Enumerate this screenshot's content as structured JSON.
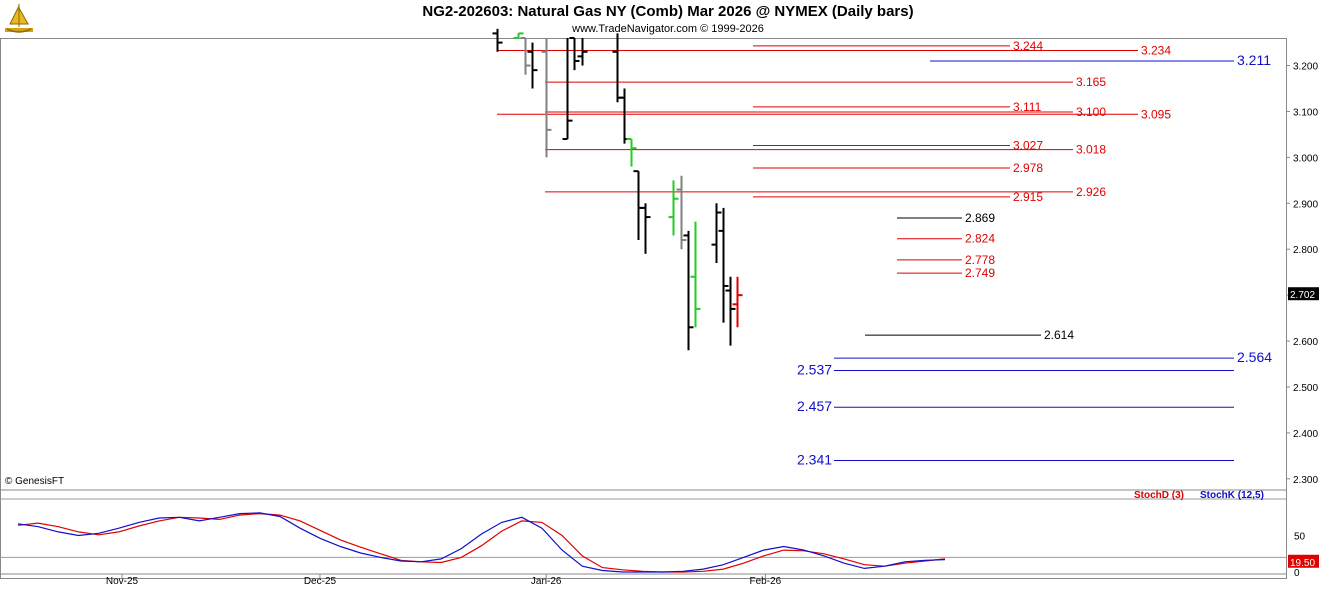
{
  "header": {
    "title": "NG2-202603:  Natural Gas NY (Comb) Mar 2026 @ NYMEX  (Daily bars)",
    "subtitle": "www.TradeNavigator.com © 1999-2026",
    "copyright": "© GenesisFT",
    "logo_icon": "sailboat-logo-icon"
  },
  "chart_data": [
    {
      "type": "ohlc",
      "ylim": [
        2.28,
        3.26
      ],
      "yticks": [
        "3.200",
        "3.100",
        "3.000",
        "2.900",
        "2.800",
        "2.700",
        "2.600",
        "2.500",
        "2.400",
        "2.300"
      ],
      "last_price": "2.702",
      "xticks": [
        "Nov-25",
        "Dec-25",
        "Jan-26",
        "Feb-26"
      ],
      "bars": [
        {
          "d": "2025-12-26",
          "o": 3.27,
          "h": 3.28,
          "l": 3.23,
          "c": 3.25,
          "color": "#000000"
        },
        {
          "d": "2025-12-29",
          "o": 3.26,
          "h": 3.27,
          "l": 3.26,
          "c": 3.27,
          "color": "#22cc22"
        },
        {
          "d": "2025-12-30",
          "o": 3.26,
          "h": 3.26,
          "l": 3.18,
          "c": 3.2,
          "color": "#808080"
        },
        {
          "d": "2025-12-31",
          "o": 3.23,
          "h": 3.25,
          "l": 3.15,
          "c": 3.19,
          "color": "#000000"
        },
        {
          "d": "2026-01-02",
          "o": 3.23,
          "h": 3.26,
          "l": 3.0,
          "c": 3.06,
          "color": "#808080"
        },
        {
          "d": "2026-01-05",
          "o": 3.04,
          "h": 3.26,
          "l": 3.04,
          "c": 3.08,
          "color": "#000000"
        },
        {
          "d": "2026-01-06",
          "o": 3.26,
          "h": 3.26,
          "l": 3.19,
          "c": 3.21,
          "color": "#000000"
        },
        {
          "d": "2026-01-07",
          "o": 3.22,
          "h": 3.26,
          "l": 3.2,
          "c": 3.23,
          "color": "#000000"
        },
        {
          "d": "2026-01-12",
          "o": 3.23,
          "h": 3.27,
          "l": 3.12,
          "c": 3.13,
          "color": "#000000"
        },
        {
          "d": "2026-01-13",
          "o": 3.13,
          "h": 3.15,
          "l": 3.03,
          "c": 3.04,
          "color": "#000000"
        },
        {
          "d": "2026-01-14",
          "o": 3.04,
          "h": 3.04,
          "l": 2.98,
          "c": 3.02,
          "color": "#22cc22"
        },
        {
          "d": "2026-01-15",
          "o": 2.97,
          "h": 2.97,
          "l": 2.82,
          "c": 2.89,
          "color": "#000000"
        },
        {
          "d": "2026-01-16",
          "o": 2.89,
          "h": 2.9,
          "l": 2.79,
          "c": 2.87,
          "color": "#000000"
        },
        {
          "d": "2026-01-20",
          "o": 2.87,
          "h": 2.95,
          "l": 2.83,
          "c": 2.91,
          "color": "#22cc22"
        },
        {
          "d": "2026-01-21",
          "o": 2.93,
          "h": 2.96,
          "l": 2.8,
          "c": 2.82,
          "color": "#808080"
        },
        {
          "d": "2026-01-22",
          "o": 2.83,
          "h": 2.84,
          "l": 2.58,
          "c": 2.63,
          "color": "#000000"
        },
        {
          "d": "2026-01-23",
          "o": 2.74,
          "h": 2.86,
          "l": 2.63,
          "c": 2.67,
          "color": "#22cc22"
        },
        {
          "d": "2026-01-26",
          "o": 2.81,
          "h": 2.9,
          "l": 2.77,
          "c": 2.88,
          "color": "#000000"
        },
        {
          "d": "2026-01-27",
          "o": 2.84,
          "h": 2.89,
          "l": 2.64,
          "c": 2.72,
          "color": "#000000"
        },
        {
          "d": "2026-01-28",
          "o": 2.71,
          "h": 2.74,
          "l": 2.59,
          "c": 2.67,
          "color": "#000000"
        },
        {
          "d": "2026-01-29",
          "o": 2.68,
          "h": 2.74,
          "l": 2.63,
          "c": 2.7,
          "color": "#e00000"
        }
      ],
      "levels": [
        {
          "value": 3.244,
          "label": "3.244",
          "color": "red"
        },
        {
          "value": 3.234,
          "label": "3.234",
          "color": "red"
        },
        {
          "value": 3.211,
          "label": "3.211",
          "color": "blue"
        },
        {
          "value": 3.165,
          "label": "3.165",
          "color": "red"
        },
        {
          "value": 3.111,
          "label": "3.111",
          "color": "red"
        },
        {
          "value": 3.1,
          "label": "3.100",
          "color": "red"
        },
        {
          "value": 3.095,
          "label": "3.095",
          "color": "red"
        },
        {
          "value": 3.027,
          "label": "3.027",
          "color": "red"
        },
        {
          "value": 3.018,
          "label": "3.018",
          "color": "red"
        },
        {
          "value": 2.978,
          "label": "2.978",
          "color": "red"
        },
        {
          "value": 2.926,
          "label": "2.926",
          "color": "red"
        },
        {
          "value": 2.915,
          "label": "2.915",
          "color": "red"
        },
        {
          "value": 2.869,
          "label": "2.869",
          "color": "black"
        },
        {
          "value": 2.824,
          "label": "2.824",
          "color": "red"
        },
        {
          "value": 2.778,
          "label": "2.778",
          "color": "red"
        },
        {
          "value": 2.749,
          "label": "2.749",
          "color": "red"
        },
        {
          "value": 2.614,
          "label": "2.614",
          "color": "black"
        },
        {
          "value": 2.564,
          "label": "2.564",
          "color": "blue"
        },
        {
          "value": 2.537,
          "label": "2.537",
          "color": "blue"
        },
        {
          "value": 2.457,
          "label": "2.457",
          "color": "blue"
        },
        {
          "value": 2.341,
          "label": "2.341",
          "color": "blue"
        }
      ]
    },
    {
      "type": "line",
      "ylim": [
        0,
        100
      ],
      "yticks": [
        "50",
        "0"
      ],
      "hlines": [
        100,
        20
      ],
      "last_value": "19.50",
      "series": [
        {
          "name": "StochD (3)",
          "color": "#e00000",
          "values": [
            64,
            67,
            62,
            55,
            51,
            55,
            63,
            70,
            75,
            74,
            72,
            78,
            80,
            78,
            70,
            57,
            44,
            34,
            25,
            16,
            14,
            13,
            20,
            36,
            56,
            70,
            68,
            50,
            22,
            6,
            3,
            1,
            0,
            0,
            1,
            4,
            12,
            22,
            30,
            29,
            25,
            18,
            10,
            8,
            12,
            15,
            18
          ]
        },
        {
          "name": "StochK (12,5)",
          "color": "#1010cc",
          "values": [
            66,
            62,
            55,
            50,
            53,
            60,
            68,
            74,
            75,
            70,
            75,
            80,
            81,
            76,
            60,
            46,
            35,
            26,
            20,
            15,
            14,
            18,
            32,
            52,
            68,
            75,
            60,
            30,
            8,
            2,
            0,
            0,
            0,
            1,
            4,
            10,
            20,
            30,
            35,
            30,
            22,
            12,
            5,
            8,
            14,
            16,
            17
          ]
        }
      ]
    }
  ]
}
